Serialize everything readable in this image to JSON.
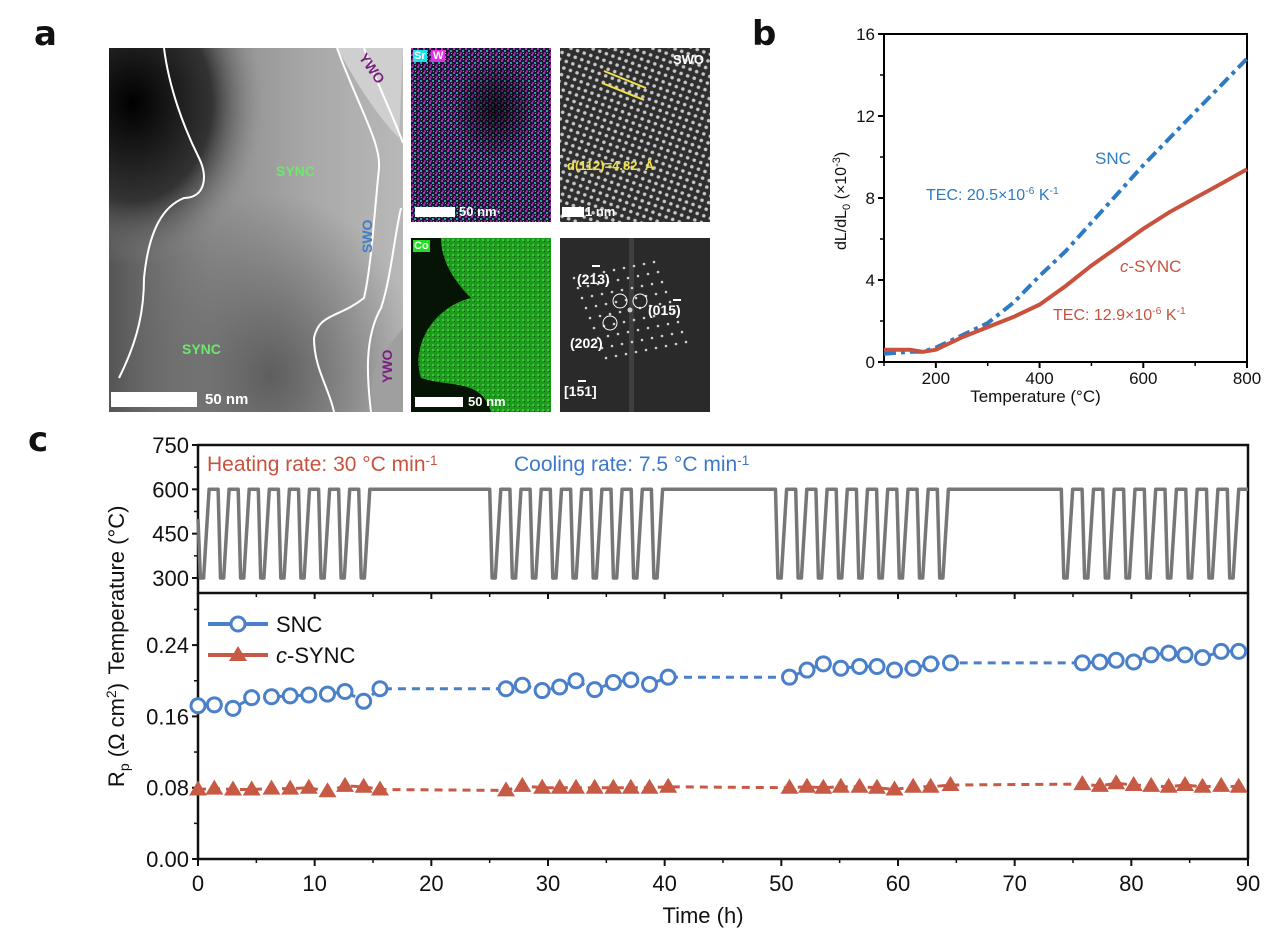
{
  "panel_labels": {
    "a": "a",
    "b": "b",
    "c": "c"
  },
  "panel_a": {
    "tem_image": {
      "labels": {
        "sync_top": "SYNC",
        "sync_bottom": "SYNC",
        "swo": "SWO",
        "ywo_top": "YWO",
        "ywo_bottom": "YWO"
      },
      "scale_bar": "50 nm"
    },
    "eds_sr_w": {
      "tag_sr": "Sr",
      "tag_w": "W",
      "scale_bar": "50 nm·"
    },
    "hrtem": {
      "phase": "SWO",
      "d_spacing": "d(112)=4.82  Å",
      "scale_bar": "1 nm"
    },
    "eds_co": {
      "tag": "Co",
      "scale_bar": "50 nm"
    },
    "fft": {
      "spot1": "(2̄1̄3)",
      "spot1_main": "(213)",
      "spot2_main": "(015)",
      "spot3_main": "(202)",
      "zone_axis_main": "[151]"
    }
  },
  "chart_data": [
    {
      "type": "line",
      "title": "",
      "xlabel": "Temperature (°C)",
      "ylabel": "dL/dL0 (×10-3)",
      "xlim": [
        100,
        800
      ],
      "ylim": [
        0,
        16
      ],
      "xticks": [
        200,
        400,
        600,
        800
      ],
      "yticks": [
        0,
        4,
        8,
        12,
        16
      ],
      "series": [
        {
          "name": "SNC",
          "color": "#2e7bc4",
          "style": "dash-dot",
          "x": [
            100,
            150,
            175,
            200,
            250,
            300,
            350,
            400,
            450,
            500,
            550,
            600,
            650,
            700,
            750,
            800
          ],
          "y": [
            0.4,
            0.5,
            0.5,
            0.7,
            1.3,
            1.9,
            2.9,
            4.2,
            5.4,
            6.8,
            8.2,
            9.6,
            10.9,
            12.2,
            13.5,
            14.8
          ]
        },
        {
          "name": "c-SYNC",
          "color": "#c9523f",
          "style": "solid",
          "x": [
            100,
            150,
            175,
            200,
            250,
            300,
            350,
            400,
            450,
            500,
            550,
            600,
            650,
            700,
            750,
            800
          ],
          "y": [
            0.6,
            0.6,
            0.5,
            0.6,
            1.2,
            1.7,
            2.2,
            2.8,
            3.7,
            4.7,
            5.6,
            6.5,
            7.3,
            8.0,
            8.7,
            9.4
          ]
        }
      ],
      "annotations": [
        {
          "text": "SNC",
          "color": "#2e7bc4"
        },
        {
          "text": "TEC: 20.5×10",
          "sup": "-6",
          "unit": " K",
          "unit_sup": "-1",
          "color": "#2e7bc4"
        },
        {
          "text": "c-SYNC",
          "color": "#c9523f"
        },
        {
          "text": "TEC: 12.9×10",
          "sup": "-6",
          "unit": " K",
          "unit_sup": "-1",
          "color": "#c9523f"
        }
      ]
    },
    {
      "type": "line",
      "title": "",
      "xlabel": "Time (h)",
      "ylabel": "Temperature (°C)",
      "xlim": [
        0,
        90
      ],
      "ylim": [
        250,
        750
      ],
      "yticks": [
        300,
        450,
        600,
        750
      ],
      "series": [
        {
          "name": "Temperature program",
          "color": "#777777",
          "segments": [
            {
              "type": "cycles",
              "start": 0,
              "end": 15.5,
              "cycles": 9,
              "low": 300,
              "high": 600
            },
            {
              "type": "hold",
              "start": 15.5,
              "end": 25,
              "value": 600
            },
            {
              "type": "cycles",
              "start": 25,
              "end": 40.6,
              "cycles": 9,
              "low": 300,
              "high": 600
            },
            {
              "type": "hold",
              "start": 40.6,
              "end": 49.5,
              "value": 600
            },
            {
              "type": "cycles",
              "start": 49.5,
              "end": 65.1,
              "cycles": 9,
              "low": 300,
              "high": 600
            },
            {
              "type": "hold",
              "start": 65.1,
              "end": 74,
              "value": 600
            },
            {
              "type": "cycles",
              "start": 74,
              "end": 90,
              "cycles": 9,
              "low": 300,
              "high": 600
            }
          ]
        }
      ],
      "annotations": [
        {
          "text": "Heating rate: 30 °C min",
          "sup": "-1",
          "color": "#c9523f"
        },
        {
          "text": "Cooling rate: 7.5 °C min",
          "sup": "-1",
          "color": "#3d78c8"
        }
      ]
    },
    {
      "type": "scatter",
      "title": "",
      "xlabel": "Time (h)",
      "ylabel": "Rp (Ω cm2)",
      "xlim": [
        0,
        90
      ],
      "ylim": [
        0,
        0.32
      ],
      "xticks": [
        0,
        10,
        20,
        30,
        40,
        50,
        60,
        70,
        80,
        90
      ],
      "yticks": [
        0.0,
        0.08,
        0.16,
        0.24
      ],
      "legend": "top-left",
      "series": [
        {
          "name": "SNC",
          "color": "#4a7fc9",
          "marker": "open-circle",
          "x": [
            0,
            1.4,
            3.0,
            4.6,
            6.3,
            7.9,
            9.5,
            11.1,
            12.6,
            14.2,
            15.6,
            26.4,
            27.8,
            29.5,
            31.0,
            32.4,
            34.0,
            35.6,
            37.1,
            38.7,
            40.3,
            50.7,
            52.2,
            53.6,
            55.1,
            56.7,
            58.2,
            59.7,
            61.3,
            62.8,
            64.5,
            75.8,
            77.3,
            78.7,
            80.2,
            81.7,
            83.2,
            84.6,
            86.1,
            87.7,
            89.2
          ],
          "y": [
            0.172,
            0.173,
            0.169,
            0.181,
            0.182,
            0.183,
            0.184,
            0.185,
            0.188,
            0.177,
            0.191,
            0.191,
            0.195,
            0.189,
            0.193,
            0.2,
            0.19,
            0.198,
            0.201,
            0.196,
            0.204,
            0.204,
            0.212,
            0.219,
            0.214,
            0.216,
            0.216,
            0.212,
            0.214,
            0.219,
            0.22,
            0.22,
            0.221,
            0.223,
            0.221,
            0.229,
            0.231,
            0.229,
            0.226,
            0.233,
            0.233
          ]
        },
        {
          "name": "c-SYNC",
          "color": "#c65a45",
          "marker": "filled-triangle",
          "x": [
            0,
            1.4,
            3.0,
            4.6,
            6.3,
            7.9,
            9.5,
            11.1,
            12.6,
            14.2,
            15.6,
            26.4,
            27.8,
            29.5,
            31.0,
            32.4,
            34.0,
            35.6,
            37.1,
            38.7,
            40.3,
            50.7,
            52.2,
            53.6,
            55.1,
            56.7,
            58.2,
            59.7,
            61.3,
            62.8,
            64.5,
            75.8,
            77.3,
            78.7,
            80.2,
            81.7,
            83.2,
            84.6,
            86.1,
            87.7,
            89.2
          ],
          "y": [
            0.078,
            0.079,
            0.078,
            0.078,
            0.079,
            0.079,
            0.08,
            0.076,
            0.082,
            0.081,
            0.078,
            0.077,
            0.082,
            0.08,
            0.08,
            0.08,
            0.08,
            0.08,
            0.08,
            0.08,
            0.081,
            0.08,
            0.081,
            0.08,
            0.081,
            0.081,
            0.08,
            0.078,
            0.081,
            0.081,
            0.083,
            0.084,
            0.082,
            0.085,
            0.083,
            0.082,
            0.081,
            0.083,
            0.081,
            0.082,
            0.081
          ]
        }
      ],
      "trend_lines": [
        {
          "series": "SNC",
          "style": "dashed"
        },
        {
          "series": "c-SYNC",
          "style": "dashed"
        }
      ]
    }
  ]
}
